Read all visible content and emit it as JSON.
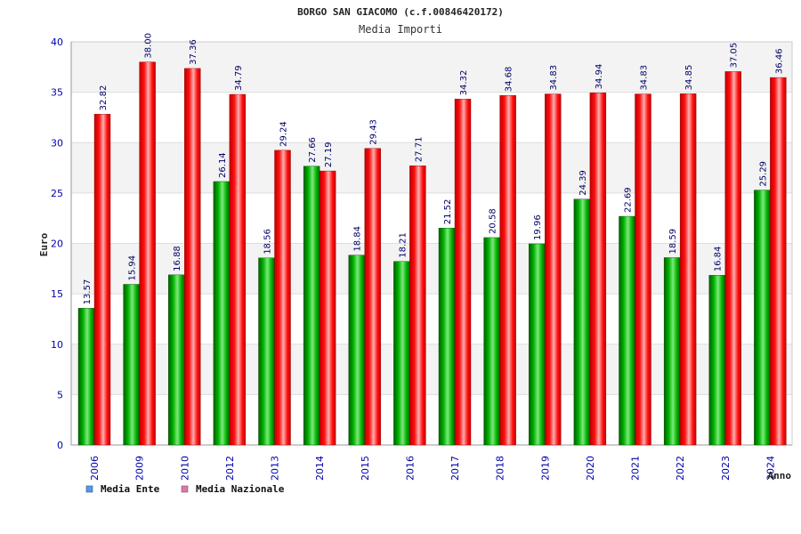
{
  "chart_data": {
    "type": "bar",
    "title": "BORGO SAN GIACOMO (c.f.00846420172)",
    "subtitle": "Media Importi",
    "ylabel": "Euro",
    "xlabel": "Anno",
    "ylim": [
      0,
      40
    ],
    "yticks": [
      0,
      5,
      10,
      15,
      20,
      25,
      30,
      35,
      40
    ],
    "grid": true,
    "legend_position": "bottom-left",
    "categories": [
      "2006",
      "2009",
      "2010",
      "2012",
      "2013",
      "2014",
      "2015",
      "2016",
      "2017",
      "2018",
      "2019",
      "2020",
      "2021",
      "2022",
      "2023",
      "2024"
    ],
    "series": [
      {
        "name": "Media Ente",
        "color": "#00aa00",
        "values": [
          13.57,
          15.94,
          16.88,
          26.14,
          18.56,
          27.66,
          18.84,
          18.21,
          21.52,
          20.58,
          19.96,
          24.39,
          22.69,
          18.59,
          16.84,
          25.29
        ],
        "labels": [
          "13.57",
          "15.94",
          "16.88",
          "26.14",
          "18.56",
          "27.66",
          "18.84",
          "18.21",
          "21.52",
          "20.58",
          "19.96",
          "24.39",
          "22.69",
          "18.59",
          "16.84",
          "25.29"
        ]
      },
      {
        "name": "Media Nazionale",
        "color": "#ee0000",
        "values": [
          32.82,
          38.0,
          37.36,
          34.79,
          29.24,
          27.19,
          29.43,
          27.71,
          34.32,
          34.68,
          34.83,
          34.94,
          34.83,
          34.85,
          37.05,
          36.46
        ],
        "labels": [
          "32.82",
          "38.00",
          "37.36",
          "34.79",
          "29.24",
          "27.19",
          "29.43",
          "27.71",
          "34.32",
          "34.68",
          "34.83",
          "34.94",
          "34.83",
          "34.85",
          "37.05",
          "36.46"
        ]
      }
    ],
    "legend_swatch_colors": [
      "#5599ee",
      "#dd77aa"
    ]
  }
}
